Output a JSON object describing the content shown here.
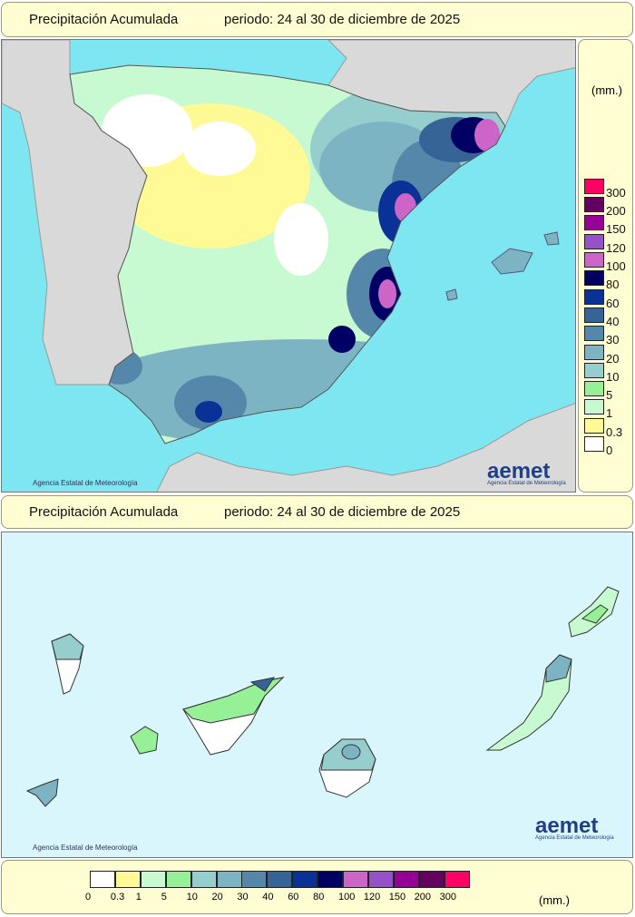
{
  "top_title": {
    "label": "Precipitación Acumulada",
    "period": "periodo: 24 al 30 de diciembre de 2025"
  },
  "bottom_title": {
    "label": "Precipitación Acumulada",
    "period": "periodo: 24 al 30 de diciembre de 2025"
  },
  "legend": {
    "unit": "(mm.)",
    "classes": [
      {
        "value": "0",
        "color": "#ffffff"
      },
      {
        "value": "0.3",
        "color": "#fffa96"
      },
      {
        "value": "1",
        "color": "#c8fad2"
      },
      {
        "value": "5",
        "color": "#96f096"
      },
      {
        "value": "10",
        "color": "#96cdcd"
      },
      {
        "value": "20",
        "color": "#7db4c3"
      },
      {
        "value": "30",
        "color": "#5587aa"
      },
      {
        "value": "40",
        "color": "#376496"
      },
      {
        "value": "60",
        "color": "#0a3296"
      },
      {
        "value": "80",
        "color": "#000064"
      },
      {
        "value": "100",
        "color": "#cd64c8"
      },
      {
        "value": "120",
        "color": "#9650c8"
      },
      {
        "value": "150",
        "color": "#960096"
      },
      {
        "value": "200",
        "color": "#64005f"
      },
      {
        "value": "300",
        "color": "#ff0064"
      }
    ]
  },
  "credit": "Agencia Estatal de Meteorología",
  "logo": {
    "name": "aemet",
    "subtitle": "Agencia Estatal de Meteorología"
  }
}
